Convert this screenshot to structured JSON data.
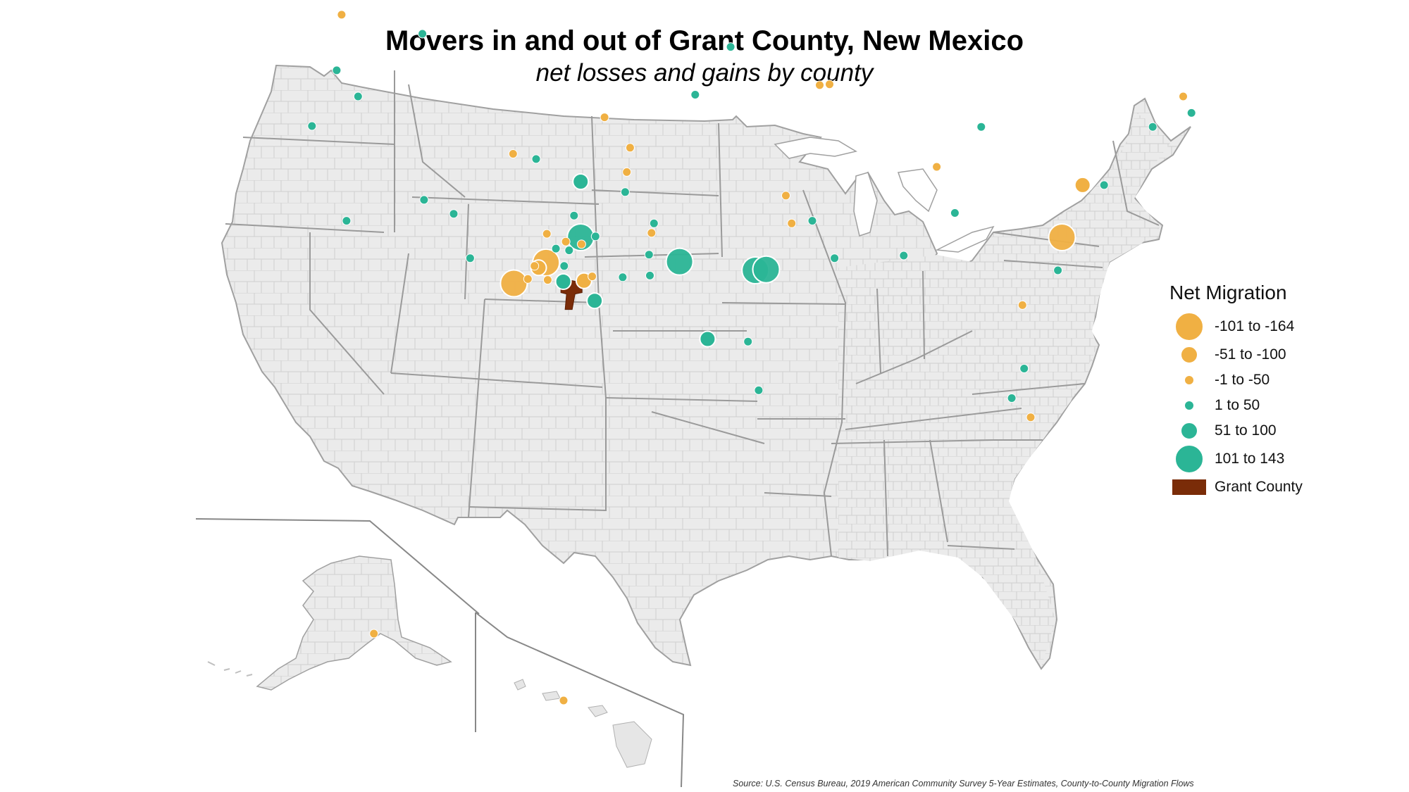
{
  "title": "Movers in and out of Grant County, New Mexico",
  "subtitle": "net losses and gains by county",
  "source": "Source: U.S. Census Bureau, 2019 American Community Survey 5-Year Estimates, County-to-County Migration Flows",
  "colors": {
    "loss": "#f0b043",
    "gain": "#2bb596",
    "grant": "#7a2c08",
    "land": "#ebebeb",
    "border": "#a8a8a8"
  },
  "legend": {
    "title": "Net Migration",
    "items": [
      {
        "label": "-101 to -164",
        "kind": "loss",
        "size_class": 3
      },
      {
        "label": "-51 to -100",
        "kind": "loss",
        "size_class": 2
      },
      {
        "label": "-1 to -50",
        "kind": "loss",
        "size_class": 1
      },
      {
        "label": "1 to 50",
        "kind": "gain",
        "size_class": 1
      },
      {
        "label": "51 to 100",
        "kind": "gain",
        "size_class": 2
      },
      {
        "label": "101 to 143",
        "kind": "gain",
        "size_class": 3
      }
    ],
    "grant_label": "Grant County"
  },
  "grant_county": {
    "lat": 32.85,
    "lon": -108.4
  },
  "counties": [
    {
      "lat": 48.75,
      "lon": -122.3,
      "kind": "loss",
      "size_class": 1
    },
    {
      "lat": 47.65,
      "lon": -117.4,
      "kind": "gain",
      "size_class": 1
    },
    {
      "lat": 45.55,
      "lon": -122.6,
      "kind": "gain",
      "size_class": 1
    },
    {
      "lat": 44.05,
      "lon": -121.3,
      "kind": "gain",
      "size_class": 1
    },
    {
      "lat": 42.35,
      "lon": -124.1,
      "kind": "gain",
      "size_class": 1
    },
    {
      "lat": 42.85,
      "lon": -106.35,
      "kind": "loss",
      "size_class": 1
    },
    {
      "lat": 40.75,
      "lon": -111.9,
      "kind": "loss",
      "size_class": 1
    },
    {
      "lat": 40.45,
      "lon": -110.5,
      "kind": "gain",
      "size_class": 1
    },
    {
      "lat": 41.1,
      "lon": -104.8,
      "kind": "loss",
      "size_class": 1
    },
    {
      "lat": 39.7,
      "lon": -105.0,
      "kind": "loss",
      "size_class": 1
    },
    {
      "lat": 39.15,
      "lon": -107.8,
      "kind": "gain",
      "size_class": 2
    },
    {
      "lat": 38.55,
      "lon": -105.1,
      "kind": "gain",
      "size_class": 1
    },
    {
      "lat": 38.1,
      "lon": -117.3,
      "kind": "gain",
      "size_class": 1
    },
    {
      "lat": 37.3,
      "lon": -115.5,
      "kind": "gain",
      "size_class": 1
    },
    {
      "lat": 36.9,
      "lon": -122.0,
      "kind": "gain",
      "size_class": 1
    },
    {
      "lat": 37.2,
      "lon": -108.2,
      "kind": "gain",
      "size_class": 1
    },
    {
      "lat": 36.75,
      "lon": -103.35,
      "kind": "gain",
      "size_class": 1
    },
    {
      "lat": 36.2,
      "lon": -103.5,
      "kind": "loss",
      "size_class": 1
    },
    {
      "lat": 36.15,
      "lon": -109.85,
      "kind": "loss",
      "size_class": 1
    },
    {
      "lat": 35.95,
      "lon": -107.8,
      "kind": "gain",
      "size_class": 3
    },
    {
      "lat": 36.0,
      "lon": -106.9,
      "kind": "gain",
      "size_class": 1
    },
    {
      "lat": 35.7,
      "lon": -108.7,
      "kind": "loss",
      "size_class": 1
    },
    {
      "lat": 35.55,
      "lon": -107.75,
      "kind": "loss",
      "size_class": 1
    },
    {
      "lat": 35.3,
      "lon": -109.3,
      "kind": "gain",
      "size_class": 1
    },
    {
      "lat": 35.2,
      "lon": -108.5,
      "kind": "gain",
      "size_class": 1
    },
    {
      "lat": 34.95,
      "lon": -103.65,
      "kind": "gain",
      "size_class": 1
    },
    {
      "lat": 34.75,
      "lon": -114.5,
      "kind": "gain",
      "size_class": 1
    },
    {
      "lat": 34.2,
      "lon": -110.35,
      "kind": "loss",
      "size_class": 2
    },
    {
      "lat": 34.3,
      "lon": -110.6,
      "kind": "loss",
      "size_class": 1
    },
    {
      "lat": 34.3,
      "lon": -108.8,
      "kind": "gain",
      "size_class": 1
    },
    {
      "lat": 33.3,
      "lon": -111.85,
      "kind": "loss",
      "size_class": 3
    },
    {
      "lat": 34.5,
      "lon": -109.9,
      "kind": "loss",
      "size_class": 3
    },
    {
      "lat": 33.55,
      "lon": -111.0,
      "kind": "loss",
      "size_class": 1
    },
    {
      "lat": 33.5,
      "lon": -109.8,
      "kind": "loss",
      "size_class": 1
    },
    {
      "lat": 33.4,
      "lon": -108.85,
      "kind": "gain",
      "size_class": 2
    },
    {
      "lat": 33.45,
      "lon": -107.6,
      "kind": "loss",
      "size_class": 2
    },
    {
      "lat": 33.7,
      "lon": -107.1,
      "kind": "loss",
      "size_class": 1
    },
    {
      "lat": 33.65,
      "lon": -105.25,
      "kind": "gain",
      "size_class": 1
    },
    {
      "lat": 33.75,
      "lon": -103.6,
      "kind": "gain",
      "size_class": 1
    },
    {
      "lat": 32.3,
      "lon": -106.95,
      "kind": "gain",
      "size_class": 2
    },
    {
      "lat": 34.55,
      "lon": -101.8,
      "kind": "gain",
      "size_class": 3
    },
    {
      "lat": 34.05,
      "lon": -97.2,
      "kind": "gain",
      "size_class": 3
    },
    {
      "lat": 34.1,
      "lon": -96.55,
      "kind": "gain",
      "size_class": 3
    },
    {
      "lat": 30.1,
      "lon": -100.1,
      "kind": "gain",
      "size_class": 2
    },
    {
      "lat": 29.95,
      "lon": -97.65,
      "kind": "gain",
      "size_class": 1
    },
    {
      "lat": 27.15,
      "lon": -97.0,
      "kind": "gain",
      "size_class": 1
    },
    {
      "lat": 36.75,
      "lon": -95.0,
      "kind": "loss",
      "size_class": 1
    },
    {
      "lat": 36.9,
      "lon": -93.75,
      "kind": "gain",
      "size_class": 1
    },
    {
      "lat": 38.35,
      "lon": -95.35,
      "kind": "loss",
      "size_class": 1
    },
    {
      "lat": 34.75,
      "lon": -92.4,
      "kind": "gain",
      "size_class": 1
    },
    {
      "lat": 34.9,
      "lon": -88.2,
      "kind": "gain",
      "size_class": 1
    },
    {
      "lat": 46.9,
      "lon": -98.7,
      "kind": "gain",
      "size_class": 1
    },
    {
      "lat": 44.15,
      "lon": -100.85,
      "kind": "gain",
      "size_class": 1
    },
    {
      "lat": 44.7,
      "lon": -93.3,
      "kind": "loss",
      "size_class": 1
    },
    {
      "lat": 44.75,
      "lon": -92.7,
      "kind": "loss",
      "size_class": 1
    },
    {
      "lat": 40.0,
      "lon": -86.2,
      "kind": "loss",
      "size_class": 1
    },
    {
      "lat": 37.35,
      "lon": -85.1,
      "kind": "gain",
      "size_class": 1
    },
    {
      "lat": 42.3,
      "lon": -83.5,
      "kind": "gain",
      "size_class": 1
    },
    {
      "lat": 38.95,
      "lon": -77.35,
      "kind": "loss",
      "size_class": 2
    },
    {
      "lat": 38.95,
      "lon": -76.05,
      "kind": "gain",
      "size_class": 1
    },
    {
      "lat": 35.95,
      "lon": -78.6,
      "kind": "loss",
      "size_class": 3
    },
    {
      "lat": 34.05,
      "lon": -78.85,
      "kind": "gain",
      "size_class": 1
    },
    {
      "lat": 32.05,
      "lon": -81.0,
      "kind": "loss",
      "size_class": 1
    },
    {
      "lat": 42.3,
      "lon": -73.1,
      "kind": "gain",
      "size_class": 1
    },
    {
      "lat": 44.05,
      "lon": -71.25,
      "kind": "loss",
      "size_class": 1
    },
    {
      "lat": 43.1,
      "lon": -70.75,
      "kind": "gain",
      "size_class": 1
    },
    {
      "lat": 28.4,
      "lon": -80.9,
      "kind": "gain",
      "size_class": 1
    },
    {
      "lat": 26.7,
      "lon": -81.65,
      "kind": "gain",
      "size_class": 1
    },
    {
      "lat": 25.6,
      "lon": -80.5,
      "kind": "loss",
      "size_class": 1
    },
    {
      "lat": 61.2,
      "lon": -149.9,
      "kind": "loss",
      "size_class": 1
    },
    {
      "lat": 19.8,
      "lon": -155.3,
      "kind": "loss",
      "size_class": 1
    }
  ]
}
